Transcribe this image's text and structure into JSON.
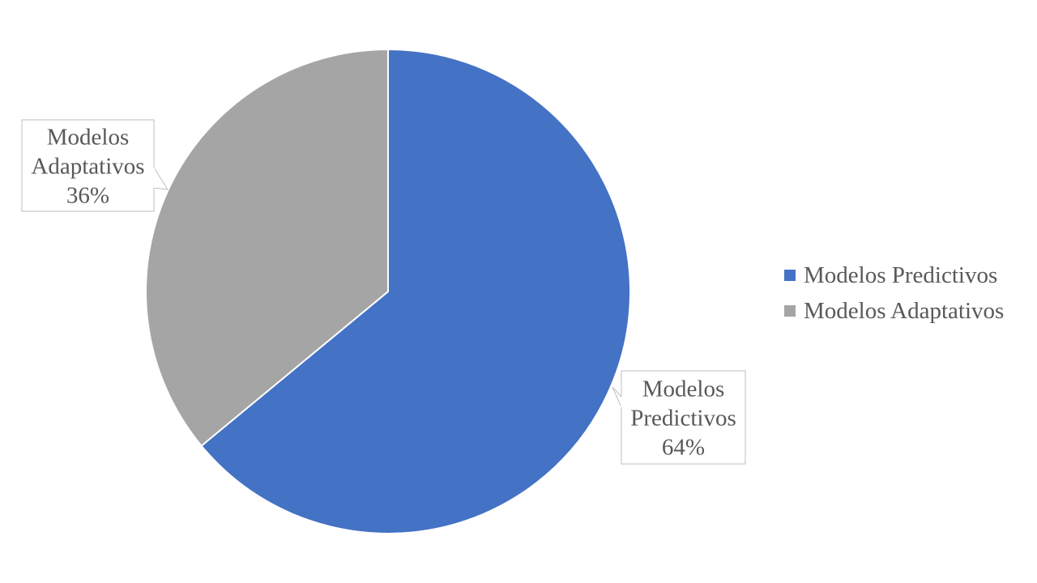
{
  "chart_data": {
    "type": "pie",
    "title": "",
    "start_angle_deg": 0,
    "direction": "clockwise",
    "legend_position": "right",
    "slices": [
      {
        "name": "Modelos Predictivos",
        "value": 64,
        "percent_label": "64%",
        "callout_lines": [
          "Modelos",
          "Predictivos",
          "64%"
        ],
        "color": "#4472C4"
      },
      {
        "name": "Modelos Adaptativos",
        "value": 36,
        "percent_label": "36%",
        "callout_lines": [
          "Modelos",
          "Adaptativos",
          "36%"
        ],
        "color": "#A5A5A5"
      }
    ]
  }
}
